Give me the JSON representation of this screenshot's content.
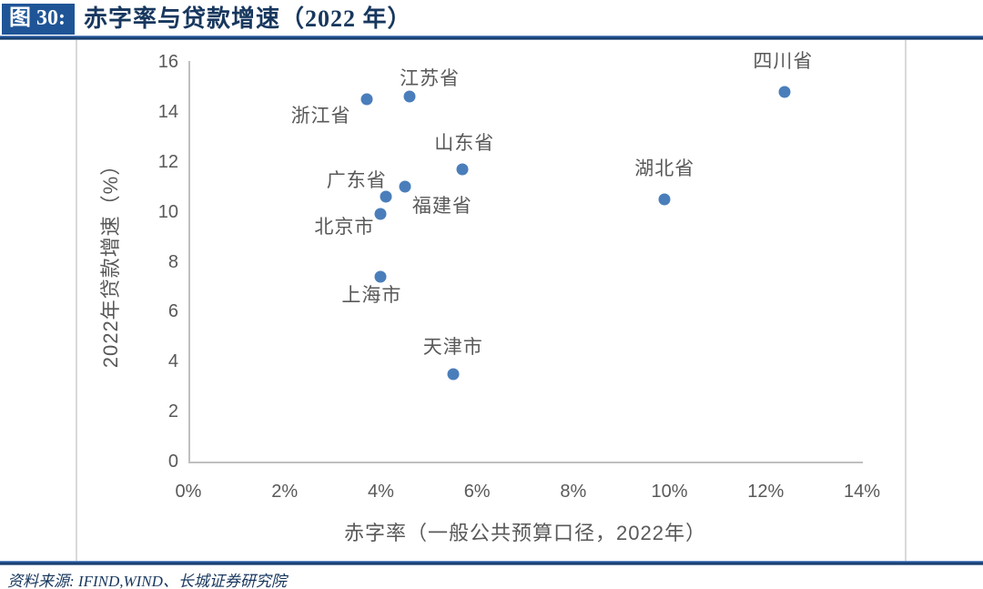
{
  "header": {
    "figure_label": "图 30:",
    "title": "赤字率与贷款增速（2022 年）"
  },
  "source": {
    "text": "资料来源: IFIND,WIND、长城证券研究院"
  },
  "colors": {
    "dot": "#4a7ebb",
    "axis_text": "#595959",
    "axis_line": "#bfbfbf",
    "header_box_bg": "#1f5597",
    "title_text": "#17375e",
    "frame_border": "#d9d9d9"
  },
  "chart_data": {
    "type": "scatter",
    "title": "赤字率与贷款增速（2022 年）",
    "xlabel": "赤字率（一般公共预算口径，2022年）",
    "ylabel": "2022年贷款增速（%）",
    "xlim": [
      0,
      14
    ],
    "ylim": [
      0,
      16
    ],
    "x_tick_values": [
      0,
      2,
      4,
      6,
      8,
      10,
      12,
      14
    ],
    "x_tick_labels": [
      "0%",
      "2%",
      "4%",
      "6%",
      "8%",
      "10%",
      "12%",
      "14%"
    ],
    "y_tick_values": [
      0,
      2,
      4,
      6,
      8,
      10,
      12,
      14,
      16
    ],
    "y_tick_labels": [
      "0",
      "2",
      "4",
      "6",
      "8",
      "10",
      "12",
      "14",
      "16"
    ],
    "grid": false,
    "legend": false,
    "series": [
      {
        "name": "provinces",
        "marker_color": "#4a7ebb",
        "points": [
          {
            "label": "浙江省",
            "x": 3.7,
            "y": 14.5,
            "label_offset": [
              -50,
              17
            ]
          },
          {
            "label": "江苏省",
            "x": 4.6,
            "y": 14.6,
            "label_offset": [
              22,
              -21
            ]
          },
          {
            "label": "山东省",
            "x": 5.7,
            "y": 11.7,
            "label_offset": [
              2,
              -30
            ]
          },
          {
            "label": "广东省",
            "x": 4.1,
            "y": 10.6,
            "label_offset": [
              -32,
              -19
            ]
          },
          {
            "label": "福建省",
            "x": 4.5,
            "y": 11.0,
            "label_offset": [
              41,
              20
            ]
          },
          {
            "label": "北京市",
            "x": 4.0,
            "y": 9.9,
            "label_offset": [
              -40,
              13
            ]
          },
          {
            "label": "上海市",
            "x": 4.0,
            "y": 7.4,
            "label_offset": [
              -10,
              19
            ]
          },
          {
            "label": "天津市",
            "x": 5.5,
            "y": 3.5,
            "label_offset": [
              0,
              -31
            ]
          },
          {
            "label": "湖北省",
            "x": 9.9,
            "y": 10.5,
            "label_offset": [
              0,
              -35
            ]
          },
          {
            "label": "四川省",
            "x": 12.4,
            "y": 14.8,
            "label_offset": [
              -2,
              -35
            ]
          }
        ]
      }
    ]
  }
}
